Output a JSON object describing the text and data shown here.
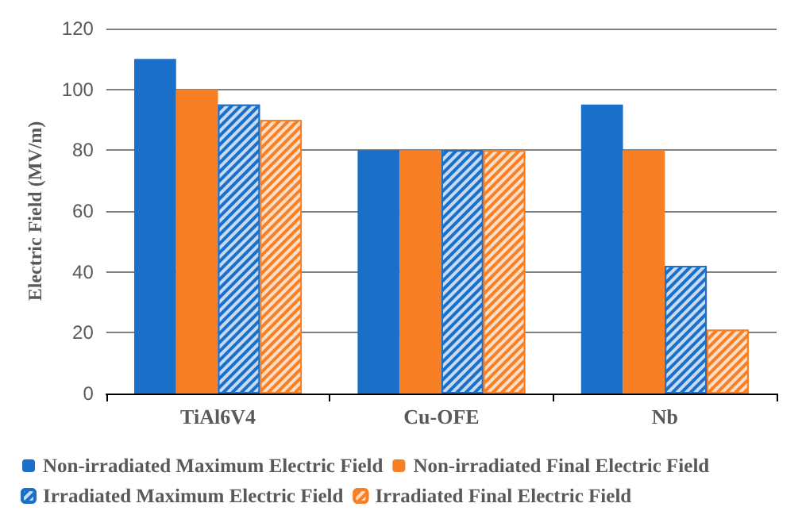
{
  "chart_data": {
    "type": "bar",
    "ylabel": "Electric Field (MV/m)",
    "categories": [
      "TiAl6V4",
      "Cu-OFE",
      "Nb"
    ],
    "series": [
      {
        "name": "Non-irradiated Maximum Electric Field",
        "color": "#1a6fc9",
        "values": [
          110,
          80,
          95
        ]
      },
      {
        "name": "Non-irradiated Final Electric Field",
        "color": "#f97f24",
        "values": [
          100,
          80,
          80
        ]
      },
      {
        "name": "Irradiated Maximum Electric Field",
        "color": "#1a6fc9",
        "values": [
          95,
          80,
          42
        ]
      },
      {
        "name": "Irradiated Final Electric Field",
        "color": "#f97f24",
        "values": [
          90,
          80,
          21
        ]
      }
    ],
    "ylim": [
      0,
      120
    ],
    "yticks": [
      0,
      20,
      40,
      60,
      80,
      100,
      120
    ],
    "grid": "y",
    "legend": "bottom"
  }
}
